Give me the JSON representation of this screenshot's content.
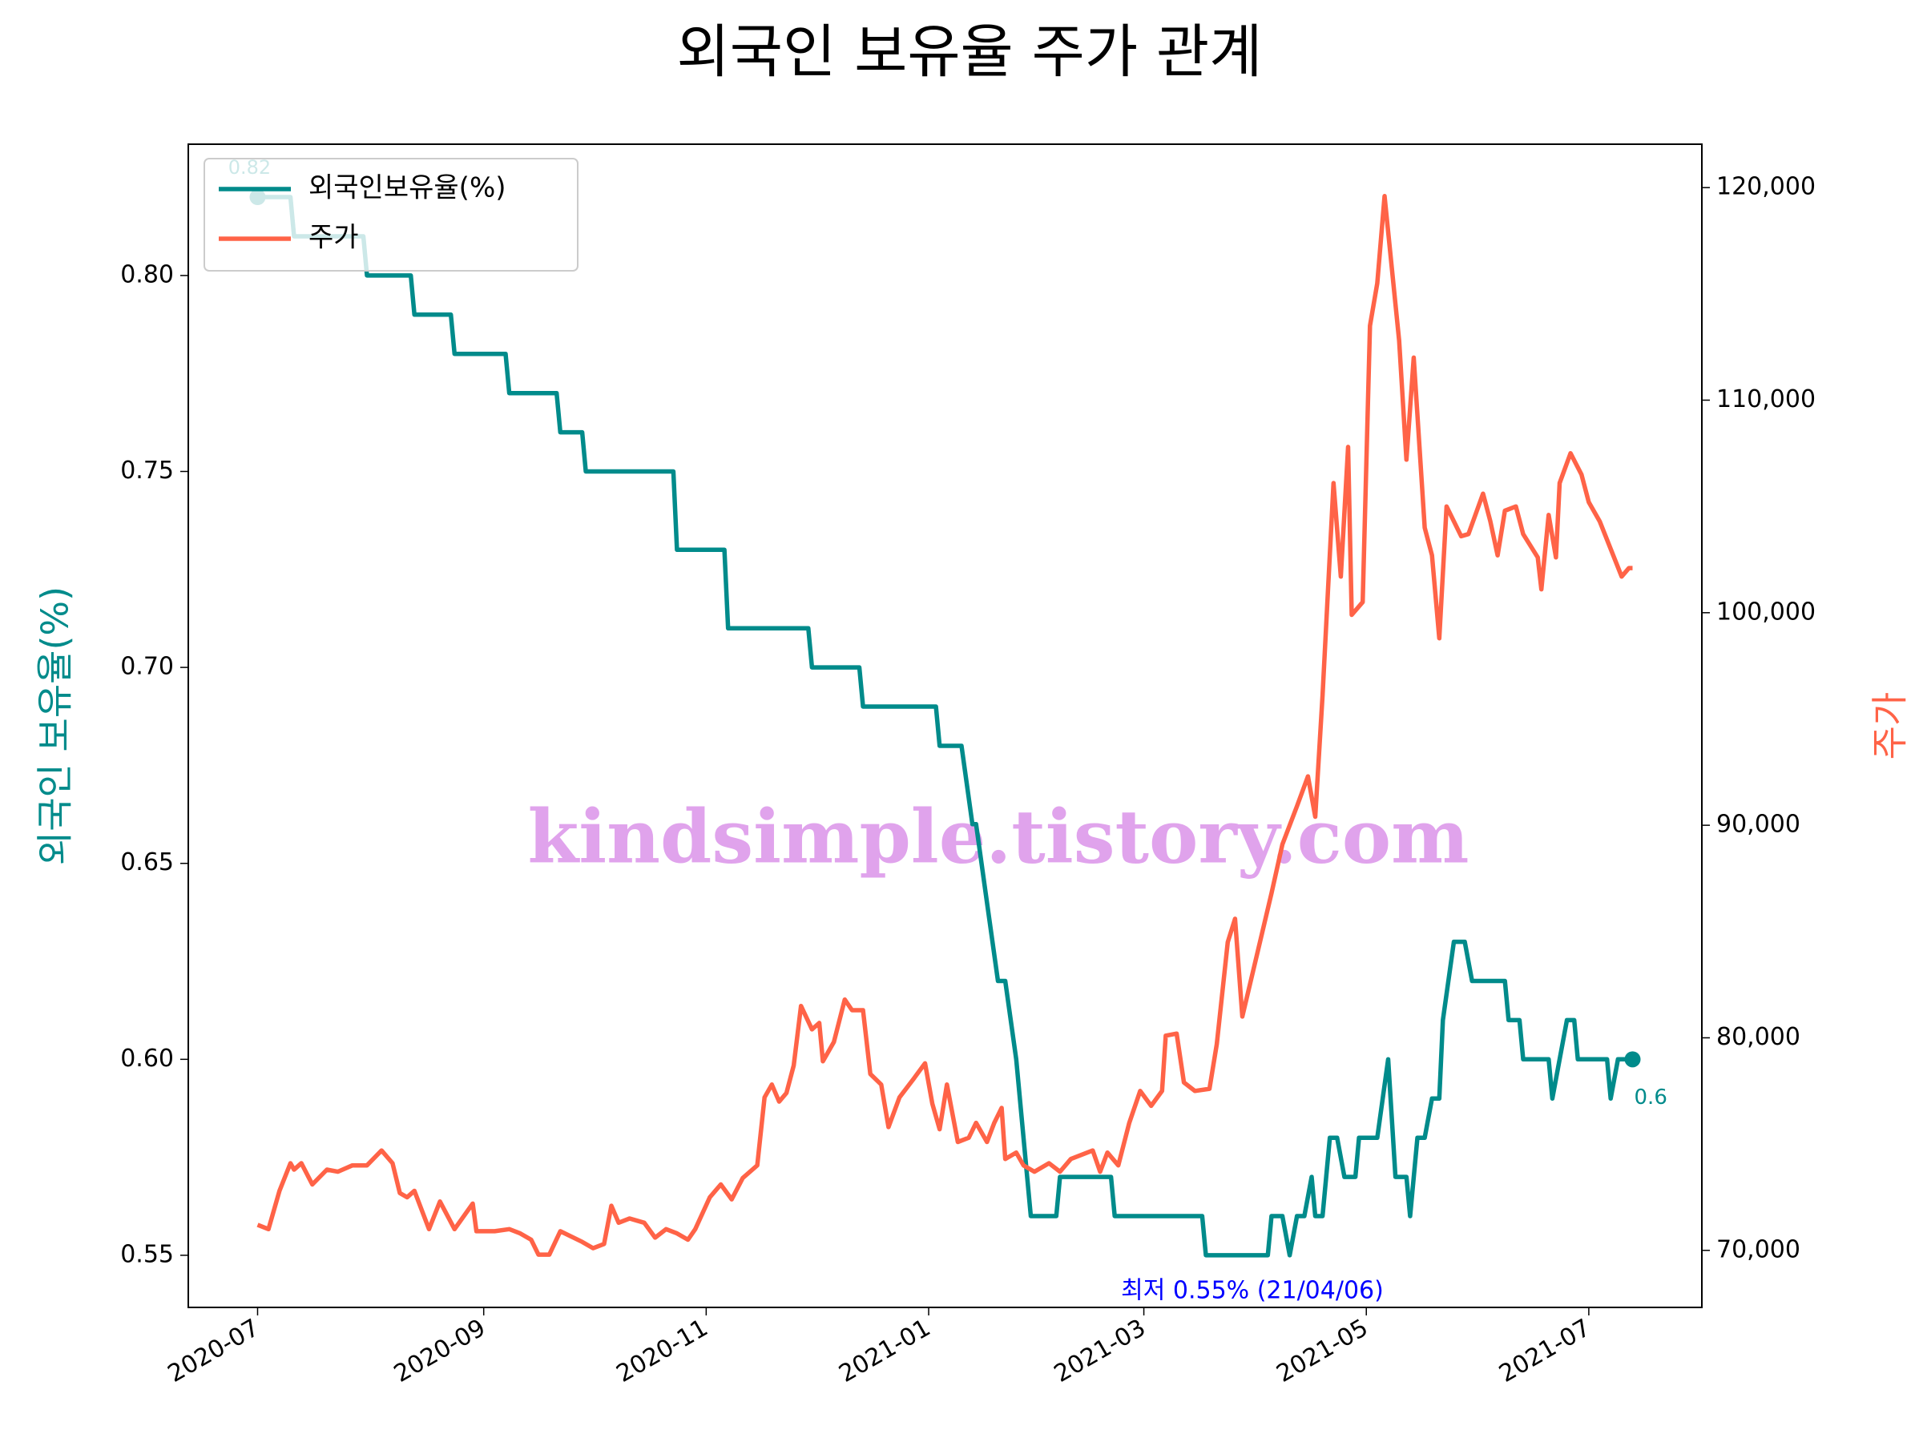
{
  "chart_data": {
    "type": "line",
    "title": "외국인 보유율 주가 관계",
    "y_label": "외국인 보유율(%)",
    "y2_label": "주가",
    "xlim": [
      "2020-06-12",
      "2021-08-01"
    ],
    "xticks": [
      "2020-07",
      "2020-09",
      "2020-11",
      "2021-01",
      "2021-03",
      "2021-05",
      "2021-07"
    ],
    "ylim": [
      0.5367,
      0.8335
    ],
    "yticks": [
      0.55,
      {
        "value": 0.6,
        "label": "0.60"
      },
      0.65,
      {
        "value": 0.7,
        "label": "0.70"
      },
      0.75,
      {
        "value": 0.8,
        "label": "0.80"
      }
    ],
    "y2lim": [
      67316,
      122042
    ],
    "y2ticks": [
      {
        "value": 70000,
        "label": "70,000"
      },
      {
        "value": 80000,
        "label": "80,000"
      },
      {
        "value": 90000,
        "label": "90,000"
      },
      {
        "value": 100000,
        "label": "100,000"
      },
      {
        "value": 110000,
        "label": "110,000"
      },
      {
        "value": 120000,
        "label": "120,000"
      }
    ],
    "legend": "upper left",
    "series": [
      {
        "name": "외국인보유율(%)",
        "color": "#008b8b",
        "x": [
          "2020-07-01",
          "2020-07-10",
          "2020-07-11",
          "2020-07-30",
          "2020-07-31",
          "2020-08-12",
          "2020-08-13",
          "2020-08-23",
          "2020-08-24",
          "2020-09-07",
          "2020-09-08",
          "2020-09-21",
          "2020-09-22",
          "2020-09-28",
          "2020-09-29",
          "2020-10-23",
          "2020-10-24",
          "2020-11-06",
          "2020-11-07",
          "2020-11-29",
          "2020-11-30",
          "2020-12-13",
          "2020-12-14",
          "2021-01-03",
          "2021-01-04",
          "2021-01-10",
          "2021-01-13",
          "2021-01-14",
          "2021-01-17",
          "2021-01-20",
          "2021-01-22",
          "2021-01-25",
          "2021-01-27",
          "2021-01-29",
          "2021-02-05",
          "2021-02-06",
          "2021-02-20",
          "2021-02-21",
          "2021-03-17",
          "2021-03-18",
          "2021-04-04",
          "2021-04-05",
          "2021-04-08",
          "2021-04-10",
          "2021-04-12",
          "2021-04-14",
          "2021-04-16",
          "2021-04-17",
          "2021-04-19",
          "2021-04-21",
          "2021-04-23",
          "2021-04-25",
          "2021-04-28",
          "2021-04-29",
          "2021-05-04",
          "2021-05-07",
          "2021-05-09",
          "2021-05-12",
          "2021-05-13",
          "2021-05-15",
          "2021-05-17",
          "2021-05-19",
          "2021-05-21",
          "2021-05-22",
          "2021-05-25",
          "2021-05-28",
          "2021-05-30",
          "2021-06-08",
          "2021-06-09",
          "2021-06-12",
          "2021-06-13",
          "2021-06-20",
          "2021-06-21",
          "2021-06-23",
          "2021-06-25",
          "2021-06-27",
          "2021-06-28",
          "2021-07-06",
          "2021-07-07",
          "2021-07-09",
          "2021-07-13"
        ],
        "values": [
          0.82,
          0.82,
          0.81,
          0.81,
          0.8,
          0.8,
          0.79,
          0.79,
          0.78,
          0.78,
          0.77,
          0.77,
          0.76,
          0.76,
          0.75,
          0.75,
          0.73,
          0.73,
          0.71,
          0.71,
          0.7,
          0.7,
          0.69,
          0.69,
          0.68,
          0.68,
          0.66,
          0.66,
          0.64,
          0.62,
          0.62,
          0.6,
          0.58,
          0.56,
          0.56,
          0.57,
          0.57,
          0.56,
          0.56,
          0.55,
          0.55,
          0.56,
          0.56,
          0.55,
          0.56,
          0.56,
          0.57,
          0.56,
          0.56,
          0.58,
          0.58,
          0.57,
          0.57,
          0.58,
          0.58,
          0.6,
          0.57,
          0.57,
          0.56,
          0.58,
          0.58,
          0.59,
          0.59,
          0.61,
          0.63,
          0.63,
          0.62,
          0.62,
          0.61,
          0.61,
          0.6,
          0.6,
          0.59,
          0.6,
          0.61,
          0.61,
          0.6,
          0.6,
          0.59,
          0.6,
          0.6
        ]
      },
      {
        "name": "주가",
        "color": "#ff6347",
        "axis": "y2",
        "x": [
          "2020-07-01",
          "2020-07-04",
          "2020-07-07",
          "2020-07-10",
          "2020-07-11",
          "2020-07-13",
          "2020-07-16",
          "2020-07-20",
          "2020-07-23",
          "2020-07-27",
          "2020-07-31",
          "2020-08-04",
          "2020-08-07",
          "2020-08-09",
          "2020-08-11",
          "2020-08-13",
          "2020-08-17",
          "2020-08-20",
          "2020-08-24",
          "2020-08-29",
          "2020-08-30",
          "2020-09-04",
          "2020-09-08",
          "2020-09-11",
          "2020-09-14",
          "2020-09-16",
          "2020-09-19",
          "2020-09-22",
          "2020-09-28",
          "2020-10-01",
          "2020-10-04",
          "2020-10-06",
          "2020-10-08",
          "2020-10-11",
          "2020-10-15",
          "2020-10-18",
          "2020-10-21",
          "2020-10-24",
          "2020-10-27",
          "2020-10-29",
          "2020-11-02",
          "2020-11-05",
          "2020-11-08",
          "2020-11-11",
          "2020-11-15",
          "2020-11-17",
          "2020-11-19",
          "2020-11-21",
          "2020-11-23",
          "2020-11-25",
          "2020-11-27",
          "2020-11-30",
          "2020-12-02",
          "2020-12-03",
          "2020-12-06",
          "2020-12-09",
          "2020-12-11",
          "2020-12-14",
          "2020-12-16",
          "2020-12-19",
          "2020-12-21",
          "2020-12-24",
          "2020-12-28",
          "2020-12-31",
          "2021-01-02",
          "2021-01-04",
          "2021-01-06",
          "2021-01-09",
          "2021-01-12",
          "2021-01-14",
          "2021-01-17",
          "2021-01-19",
          "2021-01-21",
          "2021-01-22",
          "2021-01-25",
          "2021-01-27",
          "2021-01-30",
          "2021-02-03",
          "2021-02-06",
          "2021-02-09",
          "2021-02-15",
          "2021-02-17",
          "2021-02-19",
          "2021-02-22",
          "2021-02-25",
          "2021-02-28",
          "2021-03-03",
          "2021-03-06",
          "2021-03-07",
          "2021-03-10",
          "2021-03-12",
          "2021-03-15",
          "2021-03-19",
          "2021-03-21",
          "2021-03-24",
          "2021-03-26",
          "2021-03-28",
          "2021-04-01",
          "2021-04-05",
          "2021-04-08",
          "2021-04-12",
          "2021-04-15",
          "2021-04-17",
          "2021-04-19",
          "2021-04-22",
          "2021-04-24",
          "2021-04-26",
          "2021-04-27",
          "2021-04-30",
          "2021-05-02",
          "2021-05-04",
          "2021-05-06",
          "2021-05-10",
          "2021-05-12",
          "2021-05-14",
          "2021-05-17",
          "2021-05-19",
          "2021-05-21",
          "2021-05-23",
          "2021-05-27",
          "2021-05-29",
          "2021-06-02",
          "2021-06-04",
          "2021-06-06",
          "2021-06-08",
          "2021-06-11",
          "2021-06-13",
          "2021-06-17",
          "2021-06-18",
          "2021-06-20",
          "2021-06-22",
          "2021-06-23",
          "2021-06-26",
          "2021-06-29",
          "2021-07-01",
          "2021-07-04",
          "2021-07-07",
          "2021-07-10",
          "2021-07-12",
          "2021-07-13"
        ],
        "values": [
          71200,
          71000,
          72800,
          74100,
          73800,
          74100,
          73100,
          73800,
          73700,
          74000,
          74000,
          74700,
          74100,
          72700,
          72500,
          72800,
          71000,
          72300,
          71000,
          72200,
          70900,
          70900,
          71000,
          70800,
          70500,
          69800,
          69800,
          70900,
          70400,
          70100,
          70300,
          72100,
          71300,
          71500,
          71300,
          70600,
          71000,
          70800,
          70500,
          71000,
          72500,
          73100,
          72400,
          73400,
          74000,
          77200,
          77800,
          77000,
          77400,
          78700,
          81500,
          80400,
          80700,
          78900,
          79800,
          81800,
          81300,
          81300,
          78300,
          77800,
          75800,
          77200,
          78100,
          78800,
          76900,
          75700,
          77800,
          75100,
          75300,
          76000,
          75100,
          76000,
          76700,
          74300,
          74600,
          74000,
          73700,
          74100,
          73700,
          74300,
          74700,
          73700,
          74600,
          74000,
          76000,
          77500,
          76800,
          77500,
          80100,
          80200,
          77900,
          77500,
          77600,
          79700,
          84500,
          85600,
          81000,
          83900,
          86800,
          89100,
          90900,
          92300,
          90400,
          96100,
          106100,
          101700,
          107800,
          99900,
          100500,
          113500,
          115500,
          119600,
          112800,
          107200,
          112000,
          104000,
          102700,
          98800,
          105000,
          103600,
          103700,
          105600,
          104300,
          102700,
          104800,
          105000,
          103700,
          102600,
          101100,
          104600,
          102600,
          106100,
          107500,
          106500,
          105200,
          104300,
          103000,
          101700,
          102100,
          102100
        ]
      }
    ],
    "annotations": [
      {
        "text": "0.82"
      },
      {
        "text": "0.6"
      },
      {
        "text": "최저 0.55% (21/04/06)"
      }
    ],
    "watermark": "kindsimple.tistory.com"
  }
}
